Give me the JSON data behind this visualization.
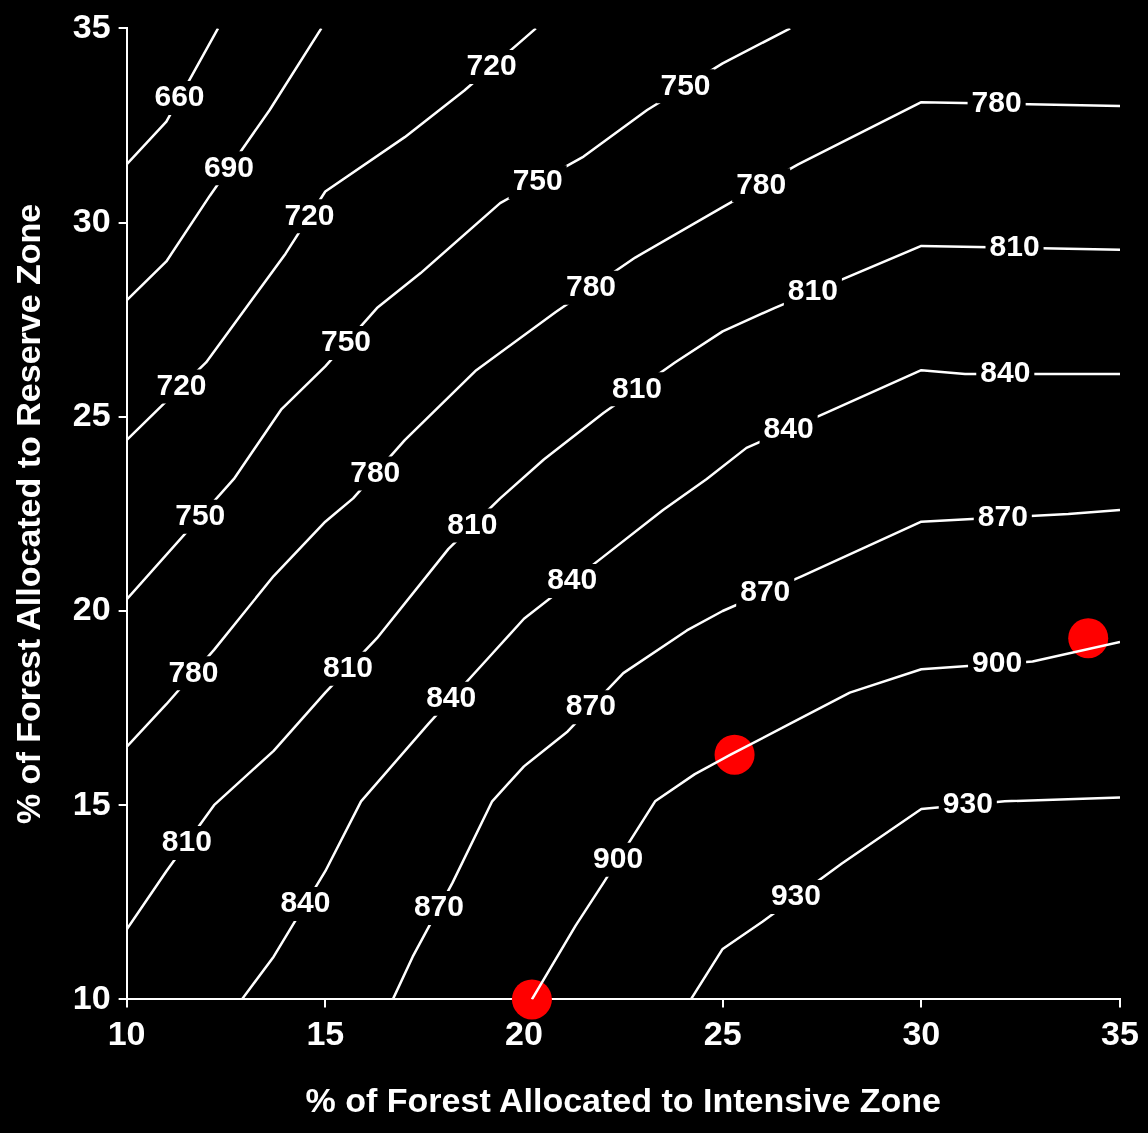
{
  "chart_data": {
    "type": "line",
    "xlabel": "% of Forest Allocated to Intensive Zone",
    "ylabel": "% of Forest Allocated to Reserve Zone",
    "xlim": [
      10,
      35
    ],
    "ylim": [
      10,
      35
    ],
    "xticks": [
      10,
      15,
      20,
      25,
      30,
      35
    ],
    "yticks": [
      10,
      15,
      20,
      25,
      30,
      35
    ],
    "grid": false,
    "legend": false,
    "line_style": "solid",
    "series": [
      {
        "name": "660",
        "color": "#ffffff",
        "marker": "none",
        "x": [
          10,
          11,
          12.3
        ],
        "values": [
          31.5,
          32.6,
          35
        ]
      },
      {
        "name": "690",
        "color": "#ffffff",
        "marker": "none",
        "x": [
          10,
          11,
          12.1,
          13.6,
          14.9
        ],
        "values": [
          28,
          29,
          30.7,
          32.9,
          35
        ]
      },
      {
        "name": "720",
        "color": "#ffffff",
        "marker": "none",
        "x": [
          10,
          12,
          14,
          15,
          17,
          18.5,
          20.3
        ],
        "values": [
          24.4,
          26.4,
          29.2,
          30.8,
          32.2,
          33.4,
          35
        ]
      },
      {
        "name": "750",
        "color": "#ffffff",
        "marker": "none",
        "x": [
          10,
          12.7,
          13.9,
          15,
          16.3,
          17.4,
          19.4,
          21.5,
          23.1,
          25,
          26.7
        ],
        "values": [
          20.3,
          23.4,
          25.2,
          26.3,
          27.8,
          28.7,
          30.5,
          31.7,
          32.9,
          34.1,
          35
        ]
      },
      {
        "name": "780",
        "color": "#ffffff",
        "marker": "none",
        "x": [
          10,
          11,
          12.2,
          13.7,
          15,
          15.7,
          17,
          18.8,
          20.8,
          22.8,
          25,
          26.9,
          30,
          35
        ],
        "values": [
          16.5,
          17.6,
          19,
          20.9,
          22.3,
          22.9,
          24.4,
          26.2,
          27.7,
          29.1,
          30.4,
          31.5,
          33.1,
          33
        ]
      },
      {
        "name": "810",
        "color": "#ffffff",
        "marker": "none",
        "x": [
          10,
          11,
          12.2,
          13.7,
          15,
          16.3,
          18.1,
          19.4,
          20.5,
          22,
          23.8,
          25,
          26.3,
          30,
          35
        ],
        "values": [
          11.8,
          13.3,
          15,
          16.4,
          17.9,
          19.3,
          21.6,
          22.9,
          23.9,
          25.1,
          26.4,
          27.2,
          27.8,
          29.4,
          29.3
        ]
      },
      {
        "name": "840",
        "color": "#ffffff",
        "marker": "none",
        "x": [
          12.9,
          13.7,
          15,
          15.9,
          17.6,
          19.2,
          20,
          22,
          23.5,
          24.6,
          25.6,
          27.6,
          30,
          31.1,
          35
        ],
        "values": [
          10,
          11.1,
          13.3,
          15.1,
          17.1,
          18.9,
          19.8,
          21.4,
          22.6,
          23.4,
          24.2,
          25.1,
          26.2,
          26.1,
          26.1
        ]
      },
      {
        "name": "870",
        "color": "#ffffff",
        "marker": "none",
        "x": [
          16.7,
          17.2,
          18.2,
          19.2,
          20,
          21.1,
          22.5,
          24.1,
          25,
          27,
          28.5,
          30,
          33.7,
          35
        ],
        "values": [
          10,
          11.1,
          13,
          15.1,
          16,
          16.9,
          18.4,
          19.5,
          20,
          20.9,
          21.6,
          22.3,
          22.5,
          22.6
        ]
      },
      {
        "name": "900",
        "color": "#ffffff",
        "marker": "none",
        "x": [
          20.2,
          21.3,
          22,
          23.3,
          24.3,
          25.2,
          26.7,
          28.2,
          30,
          32.8,
          35
        ],
        "values": [
          10,
          11.9,
          13,
          15.1,
          15.8,
          16.3,
          17.1,
          17.9,
          18.5,
          18.7,
          19.2
        ]
      },
      {
        "name": "930",
        "color": "#ffffff",
        "marker": "none",
        "x": [
          24.2,
          25,
          26,
          28,
          30,
          32.1,
          35
        ],
        "values": [
          10,
          11.3,
          12,
          13.5,
          14.9,
          15.1,
          15.2
        ]
      },
      {
        "type": "scatter",
        "color": "#ff0000",
        "marker": "circle",
        "x": [
          20.2,
          25.3,
          34.2
        ],
        "values": [
          10,
          16.3,
          19.3
        ]
      }
    ]
  }
}
